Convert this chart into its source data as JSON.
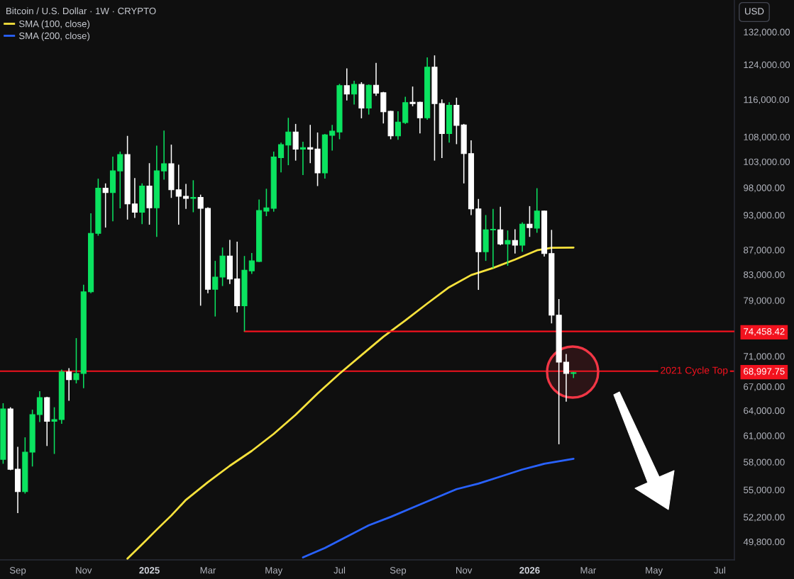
{
  "chart_data": {
    "type": "candlestick",
    "title": "Bitcoin / U.S. Dollar · 1W · CRYPTO",
    "ylabel": "USD",
    "log": "y",
    "legend": "top left",
    "x": [
      "2024-08-19",
      "2024-08-26",
      "2024-09-02",
      "2024-09-09",
      "2024-09-16",
      "2024-09-23",
      "2024-09-30",
      "2024-10-07",
      "2024-10-14",
      "2024-10-21",
      "2024-10-28",
      "2024-11-04",
      "2024-11-11",
      "2024-11-18",
      "2024-11-25",
      "2024-12-02",
      "2024-12-09",
      "2024-12-16",
      "2024-12-23",
      "2024-12-30",
      "2025-01-06",
      "2025-01-13",
      "2025-01-20",
      "2025-01-27",
      "2025-02-03",
      "2025-02-10",
      "2025-02-17",
      "2025-02-24",
      "2025-03-03",
      "2025-03-10",
      "2025-03-17",
      "2025-03-24",
      "2025-03-31",
      "2025-04-07",
      "2025-04-14",
      "2025-04-21",
      "2025-04-28",
      "2025-05-05",
      "2025-05-12",
      "2025-05-19",
      "2025-05-26",
      "2025-06-02",
      "2025-06-09",
      "2025-06-16",
      "2025-06-23",
      "2025-06-30",
      "2025-07-07",
      "2025-07-14",
      "2025-07-21",
      "2025-07-28",
      "2025-08-04",
      "2025-08-11",
      "2025-08-18",
      "2025-08-25",
      "2025-09-01",
      "2025-09-08",
      "2025-09-15",
      "2025-09-22",
      "2025-09-29",
      "2025-10-06",
      "2025-10-13",
      "2025-10-20",
      "2025-10-27",
      "2025-11-03",
      "2025-11-10",
      "2025-11-17",
      "2025-11-24",
      "2025-12-01",
      "2025-12-08",
      "2025-12-15",
      "2025-12-22",
      "2025-12-29",
      "2026-01-05",
      "2026-01-12",
      "2026-01-19",
      "2026-01-26",
      "2026-02-02",
      "2026-02-09",
      "2026-02-16"
    ],
    "ohlc": [
      [
        58300,
        64900,
        57800,
        64200
      ],
      [
        64200,
        64400,
        57100,
        57200
      ],
      [
        57200,
        59700,
        52600,
        54800
      ],
      [
        54800,
        60800,
        54600,
        59100
      ],
      [
        59100,
        64100,
        57500,
        63500
      ],
      [
        63500,
        66400,
        62600,
        65600
      ],
      [
        65600,
        65700,
        59800,
        62700
      ],
      [
        62700,
        64400,
        58900,
        62900
      ],
      [
        62900,
        69200,
        62400,
        68900
      ],
      [
        68900,
        69400,
        65200,
        67900
      ],
      [
        67900,
        73500,
        67400,
        68700
      ],
      [
        68700,
        81400,
        66800,
        80300
      ],
      [
        80300,
        93300,
        80100,
        89800
      ],
      [
        89800,
        99700,
        89400,
        97900
      ],
      [
        97900,
        98800,
        90800,
        97100
      ],
      [
        97100,
        104000,
        91900,
        101200
      ],
      [
        101200,
        105000,
        94200,
        104400
      ],
      [
        104400,
        108200,
        92200,
        95000
      ],
      [
        95000,
        99800,
        92500,
        93500
      ],
      [
        93500,
        98800,
        91400,
        98300
      ],
      [
        98300,
        102700,
        91300,
        94300
      ],
      [
        94300,
        106200,
        89200,
        101200
      ],
      [
        101200,
        109300,
        99500,
        102600
      ],
      [
        102600,
        106400,
        96100,
        97600
      ],
      [
        97600,
        102400,
        91300,
        96400
      ],
      [
        96400,
        98700,
        94100,
        96000
      ],
      [
        96000,
        99400,
        93500,
        96200
      ],
      [
        96200,
        96700,
        78200,
        94200
      ],
      [
        94200,
        94400,
        80100,
        80700
      ],
      [
        80700,
        85200,
        76600,
        82600
      ],
      [
        82600,
        87400,
        81200,
        86000
      ],
      [
        86000,
        88700,
        81500,
        82300
      ],
      [
        82300,
        88400,
        77200,
        78200
      ],
      [
        78200,
        86000,
        74460,
        83700
      ],
      [
        83600,
        86500,
        83100,
        85200
      ],
      [
        85100,
        95800,
        85000,
        93800
      ],
      [
        93700,
        97800,
        92800,
        94300
      ],
      [
        94200,
        105000,
        93600,
        103900
      ],
      [
        103800,
        106800,
        100900,
        106400
      ],
      [
        106300,
        112000,
        102300,
        109000
      ],
      [
        109000,
        110700,
        103200,
        105500
      ],
      [
        105500,
        107000,
        100400,
        105800
      ],
      [
        105800,
        110500,
        102700,
        105500
      ],
      [
        105500,
        108900,
        98300,
        100800
      ],
      [
        100800,
        108600,
        99700,
        108400
      ],
      [
        108300,
        110500,
        105200,
        109200
      ],
      [
        109000,
        119500,
        107500,
        119100
      ],
      [
        119100,
        123100,
        115800,
        117200
      ],
      [
        117200,
        120200,
        114900,
        119400
      ],
      [
        119400,
        119900,
        111900,
        114100
      ],
      [
        114100,
        119400,
        112700,
        119200
      ],
      [
        119200,
        124400,
        116800,
        117400
      ],
      [
        117500,
        117700,
        110800,
        113300
      ],
      [
        113400,
        113500,
        107500,
        108200
      ],
      [
        108200,
        113400,
        107400,
        111100
      ],
      [
        111000,
        116600,
        110700,
        115300
      ],
      [
        115400,
        118900,
        114500,
        115100
      ],
      [
        115400,
        115500,
        108700,
        112000
      ],
      [
        112000,
        125700,
        111600,
        123400
      ],
      [
        123400,
        126200,
        103200,
        115100
      ],
      [
        115100,
        116000,
        103700,
        108700
      ],
      [
        108700,
        115400,
        106800,
        114700
      ],
      [
        114700,
        116400,
        106500,
        110400
      ],
      [
        110500,
        110700,
        98800,
        104600
      ],
      [
        104600,
        107300,
        93000,
        94100
      ],
      [
        94100,
        95900,
        80600,
        86700
      ],
      [
        86700,
        93000,
        85200,
        90400
      ],
      [
        90400,
        94100,
        84000,
        90500
      ],
      [
        90400,
        94500,
        87800,
        88000
      ],
      [
        88000,
        90300,
        84400,
        88600
      ],
      [
        88600,
        90500,
        86400,
        87800
      ],
      [
        87800,
        91700,
        86700,
        91400
      ],
      [
        91400,
        94600,
        89200,
        90800
      ],
      [
        90700,
        97900,
        89900,
        93700
      ],
      [
        93700,
        93800,
        85900,
        86400
      ],
      [
        86400,
        90400,
        75600,
        76800
      ],
      [
        76800,
        79200,
        60000,
        70200
      ],
      [
        70200,
        71300,
        65100,
        68700
      ],
      [
        68700,
        68900,
        68100,
        68800
      ]
    ],
    "colors": [
      "#0be360",
      "#ffffff",
      "#ffffff",
      "#0be360",
      "#0be360",
      "#0be360",
      "#ffffff",
      "#0be360",
      "#0be360",
      "#ffffff",
      "#0be360",
      "#0be360",
      "#0be360",
      "#0be360",
      "#ffffff",
      "#0be360",
      "#0be360",
      "#ffffff",
      "#ffffff",
      "#0be360",
      "#ffffff",
      "#0be360",
      "#0be360",
      "#ffffff",
      "#ffffff",
      "#ffffff",
      "#0be360",
      "#ffffff",
      "#ffffff",
      "#0be360",
      "#0be360",
      "#ffffff",
      "#ffffff",
      "#0be360",
      "#0be360",
      "#0be360",
      "#0be360",
      "#0be360",
      "#0be360",
      "#0be360",
      "#ffffff",
      "#0be360",
      "#ffffff",
      "#ffffff",
      "#0be360",
      "#0be360",
      "#0be360",
      "#ffffff",
      "#0be360",
      "#ffffff",
      "#0be360",
      "#ffffff",
      "#ffffff",
      "#ffffff",
      "#0be360",
      "#0be360",
      "#ffffff",
      "#ffffff",
      "#0be360",
      "#ffffff",
      "#ffffff",
      "#0be360",
      "#ffffff",
      "#ffffff",
      "#ffffff",
      "#ffffff",
      "#0be360",
      "#0be360",
      "#ffffff",
      "#0be360",
      "#ffffff",
      "#0be360",
      "#ffffff",
      "#0be360",
      "#ffffff",
      "#ffffff",
      "#ffffff",
      "#ffffff",
      "#0be360"
    ],
    "series": [
      {
        "name": "SMA (100, close)",
        "type": "line",
        "color": "#f7e23c",
        "x": [
          "2024-12-16",
          "2024-12-30",
          "2025-01-13",
          "2025-01-27",
          "2025-02-10",
          "2025-03-03",
          "2025-03-24",
          "2025-04-14",
          "2025-05-05",
          "2025-05-26",
          "2025-06-16",
          "2025-07-07",
          "2025-07-28",
          "2025-08-18",
          "2025-09-08",
          "2025-09-29",
          "2025-10-20",
          "2025-11-10",
          "2025-12-01",
          "2025-12-22",
          "2026-01-12",
          "2026-01-26",
          "2026-02-16"
        ],
        "values": [
          48220,
          49550,
          50960,
          52360,
          53950,
          55800,
          57580,
          59240,
          61200,
          63480,
          66110,
          68670,
          71140,
          73700,
          76020,
          78530,
          81020,
          82920,
          84050,
          85420,
          86940,
          87360,
          87400
        ]
      },
      {
        "name": "SMA (200, close)",
        "type": "line",
        "color": "#2962ff",
        "x": [
          "2025-06-02",
          "2025-06-23",
          "2025-07-14",
          "2025-08-04",
          "2025-08-25",
          "2025-09-15",
          "2025-10-06",
          "2025-10-27",
          "2025-11-17",
          "2025-12-08",
          "2025-12-29",
          "2026-01-19",
          "2026-02-02",
          "2026-02-16"
        ],
        "values": [
          48330,
          49210,
          50280,
          51390,
          52220,
          53150,
          54100,
          55060,
          55650,
          56400,
          57170,
          57800,
          58070,
          58350
        ]
      },
      {
        "type": "line",
        "color": "#f2121e",
        "x": [
          "2025-04-07",
          "2026-07-20"
        ],
        "values": [
          74458.42,
          74458.42
        ]
      }
    ],
    "ref_lines": [
      {
        "axis": "y",
        "value": 68997.75,
        "label": "2021 Cycle Top",
        "color": "#f2121e"
      }
    ],
    "ylim": [
      48100,
      140300
    ],
    "yticks": [
      {
        "value": 132000,
        "label": "132,000.00"
      },
      {
        "value": 124000,
        "label": "124,000.00"
      },
      {
        "value": 116000,
        "label": "116,000.00"
      },
      {
        "value": 108000,
        "label": "108,000.00"
      },
      {
        "value": 103000,
        "label": "103,000.00"
      },
      {
        "value": 98000,
        "label": "98,000.00"
      },
      {
        "value": 93000,
        "label": "93,000.00"
      },
      {
        "value": 87000,
        "label": "87,000.00"
      },
      {
        "value": 83000,
        "label": "83,000.00"
      },
      {
        "value": 79000,
        "label": "79,000.00"
      },
      {
        "value": 74458.42,
        "label": "74,458.42"
      },
      {
        "value": 71000,
        "label": "71,000.00"
      },
      {
        "value": 68997.75,
        "label": "68,997.75"
      },
      {
        "value": 67000,
        "label": "67,000.00"
      },
      {
        "value": 64000,
        "label": "64,000.00"
      },
      {
        "value": 61000,
        "label": "61,000.00"
      },
      {
        "value": 58000,
        "label": "58,000.00"
      },
      {
        "value": 55000,
        "label": "55,000.00"
      },
      {
        "value": 52200,
        "label": "52,200.00"
      },
      {
        "value": 49800,
        "label": "49,800.00"
      }
    ],
    "xlim": [
      "2024-08-16",
      "2026-07-20"
    ],
    "xticks": [
      {
        "value": "2024-09-02",
        "label": "Sep"
      },
      {
        "value": "2024-11-04",
        "label": "Nov"
      },
      {
        "value": "2025-01-06",
        "label": "2025"
      },
      {
        "value": "2025-03-03",
        "label": "Mar"
      },
      {
        "value": "2025-05-05",
        "label": "May"
      },
      {
        "value": "2025-07-07",
        "label": "Jul"
      },
      {
        "value": "2025-09-01",
        "label": "Sep"
      },
      {
        "value": "2025-11-03",
        "label": "Nov"
      },
      {
        "value": "2026-01-05",
        "label": "2026"
      },
      {
        "value": "2026-03-02",
        "label": "Mar"
      },
      {
        "value": "2026-05-04",
        "label": "May"
      },
      {
        "value": "2026-07-06",
        "label": "Jul"
      }
    ]
  }
}
